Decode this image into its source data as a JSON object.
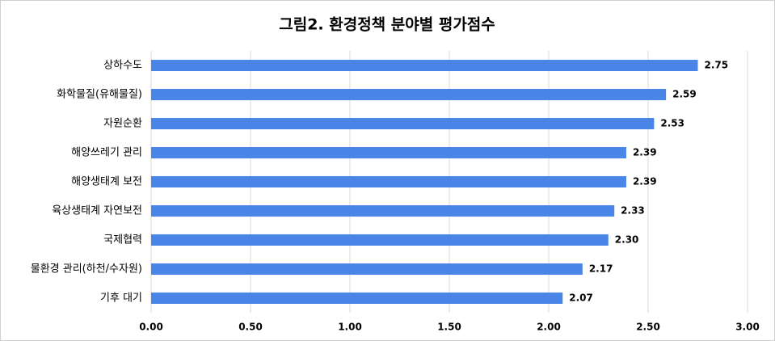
{
  "chart_data": {
    "type": "hbar",
    "title": "그림2. 환경정책 분야별 평가점수",
    "categories": [
      "상하수도",
      "화학물질(유해물질)",
      "자원순환",
      "해양쓰레기 관리",
      "해양생태계 보전",
      "육상생태계 자연보전",
      "국제협력",
      "물환경 관리(하천/수자원)",
      "기후 대기"
    ],
    "values": [
      2.75,
      2.59,
      2.53,
      2.39,
      2.39,
      2.33,
      2.3,
      2.17,
      2.07
    ],
    "value_labels": [
      "2.75",
      "2.59",
      "2.53",
      "2.39",
      "2.39",
      "2.33",
      "2.30",
      "2.17",
      "2.07"
    ],
    "color": "#4a86e8",
    "xlim": [
      0,
      3
    ],
    "xticks": [
      {
        "value": 0,
        "label": "0.00"
      },
      {
        "value": 0.5,
        "label": "0.50"
      },
      {
        "value": 1,
        "label": "1.00"
      },
      {
        "value": 1.5,
        "label": "1.50"
      },
      {
        "value": 2,
        "label": "2.00"
      },
      {
        "value": 2.5,
        "label": "2.50"
      },
      {
        "value": 3,
        "label": "3.00"
      }
    ],
    "grid": true
  }
}
